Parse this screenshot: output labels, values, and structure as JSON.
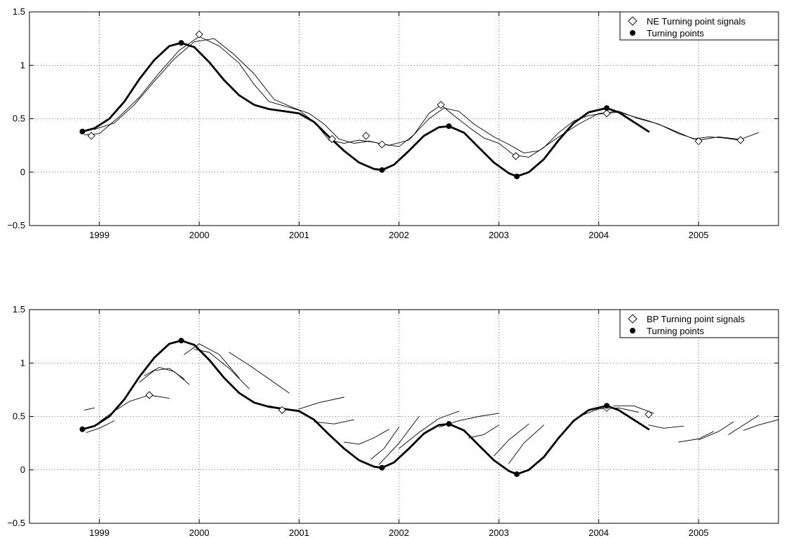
{
  "chart_data": [
    {
      "type": "line",
      "legend_position": "top-right",
      "grid": true,
      "xlim": [
        1998.3,
        2005.8
      ],
      "ylim": [
        -0.5,
        1.5
      ],
      "x_ticks": [
        1999,
        2000,
        2001,
        2002,
        2003,
        2004,
        2005
      ],
      "x_tick_labels": [
        "1999",
        "2000",
        "2001",
        "2002",
        "2003",
        "2004",
        "2005"
      ],
      "y_ticks": [
        -0.5,
        0,
        0.5,
        1,
        1.5
      ],
      "y_tick_labels": [
        "−0.5",
        "0",
        "0.5",
        "1",
        "1.5"
      ],
      "legend": [
        "NE Turning point signals",
        "Turning points"
      ],
      "series": [
        {
          "role": "bold",
          "x": [
            1998.83,
            1998.95,
            1999.1,
            1999.25,
            1999.4,
            1999.55,
            1999.7,
            1999.82,
            1999.95,
            2000.1,
            2000.25,
            2000.4,
            2000.55,
            2000.7,
            2000.85,
            2001.0,
            2001.15,
            2001.3,
            2001.45,
            2001.6,
            2001.75,
            2001.83,
            2001.95,
            2002.1,
            2002.25,
            2002.4,
            2002.5,
            2002.65,
            2002.8,
            2002.95,
            2003.1,
            2003.18,
            2003.3,
            2003.45,
            2003.6,
            2003.75,
            2003.9,
            2004.08,
            2004.2,
            2004.35,
            2004.5
          ],
          "y": [
            0.38,
            0.41,
            0.5,
            0.66,
            0.87,
            1.05,
            1.18,
            1.21,
            1.17,
            1.03,
            0.86,
            0.72,
            0.63,
            0.59,
            0.57,
            0.55,
            0.47,
            0.33,
            0.2,
            0.09,
            0.03,
            0.02,
            0.07,
            0.2,
            0.34,
            0.42,
            0.43,
            0.37,
            0.23,
            0.09,
            -0.01,
            -0.04,
            0.0,
            0.12,
            0.3,
            0.46,
            0.56,
            0.6,
            0.56,
            0.47,
            0.38
          ]
        },
        {
          "role": "thin",
          "x": [
            1998.85,
            1999.0,
            1999.2,
            1999.4,
            1999.6,
            1999.8,
            2000.0,
            2000.2,
            2000.4,
            2000.55,
            2000.7,
            2000.85,
            2001.0,
            2001.15,
            2001.3,
            2001.45,
            2001.6,
            2001.75,
            2001.85,
            2002.0,
            2002.15,
            2002.3,
            2002.42,
            2002.55,
            2002.7,
            2002.85,
            2003.0,
            2003.15,
            2003.3,
            2003.45,
            2003.6,
            2003.75,
            2003.9,
            2004.05,
            2004.2,
            2004.35,
            2004.5,
            2004.65,
            2004.8,
            2004.95,
            2005.1,
            2005.25,
            2005.4,
            2005.6
          ],
          "y": [
            0.35,
            0.36,
            0.52,
            0.7,
            0.93,
            1.14,
            1.27,
            1.18,
            1.02,
            0.82,
            0.66,
            0.62,
            0.58,
            0.47,
            0.3,
            0.27,
            0.3,
            0.28,
            0.26,
            0.24,
            0.35,
            0.55,
            0.63,
            0.53,
            0.42,
            0.32,
            0.27,
            0.16,
            0.14,
            0.23,
            0.37,
            0.48,
            0.53,
            0.55,
            0.56,
            0.52,
            0.48,
            0.43,
            0.37,
            0.31,
            0.33,
            0.32,
            0.3,
            0.37
          ]
        },
        {
          "role": "thin",
          "x": [
            1998.95,
            1999.15,
            1999.35,
            1999.55,
            1999.75,
            1999.95,
            2000.15,
            2000.35,
            2000.55,
            2000.75,
            2000.95,
            2001.1,
            2001.25,
            2001.4,
            2001.55,
            2001.7,
            2001.9,
            2002.1,
            2002.3,
            2002.45,
            2002.6,
            2002.75,
            2002.95,
            2003.1,
            2003.25,
            2003.4,
            2003.6,
            2003.8,
            2004.0,
            2004.2,
            2004.4,
            2004.6,
            2004.8,
            2005.0,
            2005.2,
            2005.4
          ],
          "y": [
            0.4,
            0.46,
            0.63,
            0.85,
            1.06,
            1.22,
            1.25,
            1.1,
            0.92,
            0.68,
            0.6,
            0.55,
            0.45,
            0.31,
            0.27,
            0.29,
            0.25,
            0.3,
            0.5,
            0.6,
            0.57,
            0.45,
            0.33,
            0.26,
            0.18,
            0.2,
            0.33,
            0.45,
            0.55,
            0.57,
            0.5,
            0.45,
            0.36,
            0.3,
            0.33,
            0.31
          ]
        }
      ],
      "markers_diamond": {
        "x": [
          1998.92,
          2000.0,
          2001.33,
          2001.67,
          2001.83,
          2002.42,
          2003.17,
          2004.08,
          2005.0,
          2005.42
        ],
        "y": [
          0.34,
          1.29,
          0.31,
          0.34,
          0.26,
          0.63,
          0.15,
          0.55,
          0.29,
          0.3
        ]
      },
      "markers_dot": {
        "x": [
          1998.83,
          1999.82,
          2001.83,
          2002.5,
          2003.18,
          2004.08
        ],
        "y": [
          0.38,
          1.21,
          0.02,
          0.43,
          -0.04,
          0.6
        ]
      }
    },
    {
      "type": "line",
      "legend_position": "top-right",
      "grid": true,
      "xlim": [
        1998.3,
        2005.8
      ],
      "ylim": [
        -0.5,
        1.5
      ],
      "x_ticks": [
        1999,
        2000,
        2001,
        2002,
        2003,
        2004,
        2005
      ],
      "x_tick_labels": [
        "1999",
        "2000",
        "2001",
        "2002",
        "2003",
        "2004",
        "2005"
      ],
      "y_ticks": [
        -0.5,
        0,
        0.5,
        1,
        1.5
      ],
      "y_tick_labels": [
        "−0.5",
        "0",
        "0.5",
        "1",
        "1.5"
      ],
      "legend": [
        "BP Turning point signals",
        "Turning points"
      ],
      "series": [
        {
          "role": "bold",
          "x": [
            1998.83,
            1998.95,
            1999.1,
            1999.25,
            1999.4,
            1999.55,
            1999.7,
            1999.82,
            1999.95,
            2000.1,
            2000.25,
            2000.4,
            2000.55,
            2000.7,
            2000.85,
            2001.0,
            2001.15,
            2001.3,
            2001.45,
            2001.6,
            2001.75,
            2001.83,
            2001.95,
            2002.1,
            2002.25,
            2002.4,
            2002.5,
            2002.65,
            2002.8,
            2002.95,
            2003.1,
            2003.18,
            2003.3,
            2003.45,
            2003.6,
            2003.75,
            2003.9,
            2004.08,
            2004.2,
            2004.35,
            2004.5
          ],
          "y": [
            0.38,
            0.41,
            0.5,
            0.66,
            0.87,
            1.05,
            1.18,
            1.21,
            1.17,
            1.03,
            0.86,
            0.72,
            0.63,
            0.59,
            0.57,
            0.55,
            0.47,
            0.33,
            0.2,
            0.09,
            0.03,
            0.02,
            0.07,
            0.2,
            0.34,
            0.42,
            0.43,
            0.37,
            0.23,
            0.09,
            -0.01,
            -0.04,
            0.0,
            0.12,
            0.3,
            0.46,
            0.56,
            0.6,
            0.56,
            0.47,
            0.38
          ]
        },
        {
          "role": "thin",
          "x": [
            1998.85,
            1998.95
          ],
          "y": [
            0.56,
            0.58
          ]
        },
        {
          "role": "thin",
          "x": [
            1998.87,
            1999.0,
            1999.15
          ],
          "y": [
            0.35,
            0.39,
            0.46
          ]
        },
        {
          "role": "thin",
          "x": [
            1999.0,
            1999.15,
            1999.3,
            1999.5,
            1999.7
          ],
          "y": [
            0.45,
            0.55,
            0.64,
            0.7,
            0.67
          ]
        },
        {
          "role": "thin",
          "x": [
            1999.4,
            1999.55,
            1999.7,
            1999.85
          ],
          "y": [
            0.82,
            0.93,
            0.95,
            0.85
          ]
        },
        {
          "role": "thin",
          "x": [
            1999.45,
            1999.6,
            1999.75,
            1999.9
          ],
          "y": [
            0.88,
            0.96,
            0.92,
            0.8
          ]
        },
        {
          "role": "thin",
          "x": [
            1999.85,
            2000.0,
            2000.2,
            2000.4
          ],
          "y": [
            1.08,
            1.18,
            1.08,
            0.86
          ]
        },
        {
          "role": "thin",
          "x": [
            1999.95,
            2000.1,
            2000.3,
            2000.5
          ],
          "y": [
            1.13,
            1.1,
            0.95,
            0.76
          ]
        },
        {
          "role": "thin",
          "x": [
            2000.3,
            2000.5,
            2000.7,
            2000.9
          ],
          "y": [
            1.1,
            0.98,
            0.85,
            0.72
          ]
        },
        {
          "role": "thin",
          "x": [
            2000.7,
            2000.85,
            2001.0
          ],
          "y": [
            0.6,
            0.57,
            0.56
          ]
        },
        {
          "role": "thin",
          "x": [
            2001.0,
            2001.2,
            2001.45
          ],
          "y": [
            0.57,
            0.63,
            0.68
          ]
        },
        {
          "role": "thin",
          "x": [
            2001.15,
            2001.35,
            2001.55
          ],
          "y": [
            0.45,
            0.43,
            0.47
          ]
        },
        {
          "role": "thin",
          "x": [
            2001.45,
            2001.6,
            2001.75,
            2001.9
          ],
          "y": [
            0.26,
            0.24,
            0.3,
            0.38
          ]
        },
        {
          "role": "thin",
          "x": [
            2001.72,
            2001.85,
            2002.0
          ],
          "y": [
            0.1,
            0.2,
            0.4
          ]
        },
        {
          "role": "thin",
          "x": [
            2001.8,
            2002.0,
            2002.2
          ],
          "y": [
            0.05,
            0.25,
            0.5
          ]
        },
        {
          "role": "thin",
          "x": [
            2002.0,
            2002.2,
            2002.4,
            2002.6
          ],
          "y": [
            0.2,
            0.35,
            0.48,
            0.55
          ]
        },
        {
          "role": "thin",
          "x": [
            2002.4,
            2002.6,
            2002.8,
            2003.0
          ],
          "y": [
            0.4,
            0.46,
            0.5,
            0.53
          ]
        },
        {
          "role": "thin",
          "x": [
            2002.7,
            2002.85,
            2003.0
          ],
          "y": [
            0.3,
            0.33,
            0.42
          ]
        },
        {
          "role": "thin",
          "x": [
            2002.95,
            2003.1,
            2003.3
          ],
          "y": [
            0.13,
            0.28,
            0.43
          ]
        },
        {
          "role": "thin",
          "x": [
            2003.1,
            2003.25,
            2003.45
          ],
          "y": [
            0.06,
            0.25,
            0.42
          ]
        },
        {
          "role": "thin",
          "x": [
            2003.8,
            2004.0,
            2004.2,
            2004.4
          ],
          "y": [
            0.5,
            0.57,
            0.58,
            0.54
          ]
        },
        {
          "role": "thin",
          "x": [
            2004.15,
            2004.35,
            2004.55
          ],
          "y": [
            0.6,
            0.6,
            0.53
          ]
        },
        {
          "role": "thin",
          "x": [
            2004.5,
            2004.65,
            2004.85
          ],
          "y": [
            0.42,
            0.39,
            0.41
          ]
        },
        {
          "role": "thin",
          "x": [
            2004.8,
            2005.0,
            2005.15
          ],
          "y": [
            0.26,
            0.29,
            0.36
          ]
        },
        {
          "role": "thin",
          "x": [
            2005.0,
            2005.2,
            2005.35
          ],
          "y": [
            0.28,
            0.36,
            0.45
          ]
        },
        {
          "role": "thin",
          "x": [
            2005.3,
            2005.45,
            2005.6
          ],
          "y": [
            0.33,
            0.42,
            0.51
          ]
        },
        {
          "role": "thin",
          "x": [
            2005.45,
            2005.6,
            2005.8
          ],
          "y": [
            0.37,
            0.42,
            0.47
          ]
        }
      ],
      "markers_diamond": {
        "x": [
          1999.5,
          2000.83,
          2004.08,
          2004.5
        ],
        "y": [
          0.7,
          0.56,
          0.58,
          0.52
        ]
      },
      "markers_dot": {
        "x": [
          1998.83,
          1999.82,
          2001.83,
          2002.5,
          2003.18,
          2004.08
        ],
        "y": [
          0.38,
          1.21,
          0.02,
          0.43,
          -0.04,
          0.6
        ]
      }
    }
  ]
}
